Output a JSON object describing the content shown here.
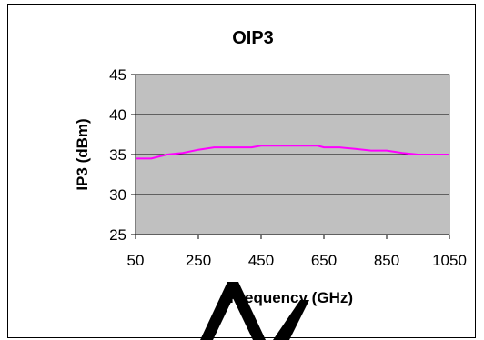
{
  "chart_data": {
    "type": "line",
    "title": "OIP3",
    "xlabel": "Frequency (GHz)",
    "ylabel": "IP3 (dBm)",
    "xlim": [
      50,
      1050
    ],
    "ylim": [
      25,
      45
    ],
    "x_ticks": [
      "50",
      "250",
      "450",
      "650",
      "850",
      "1050"
    ],
    "y_ticks": [
      "25",
      "30",
      "35",
      "40",
      "45"
    ],
    "grid": true,
    "legend": "none",
    "plot_background": "#c0c0c0",
    "series": [
      {
        "color": "#ff00ff",
        "x": [
          50,
          100,
          150,
          200,
          250,
          300,
          350,
          400,
          420,
          450,
          500,
          550,
          600,
          630,
          650,
          700,
          750,
          800,
          850,
          900,
          950,
          1000,
          1050
        ],
        "values": [
          34.5,
          34.5,
          35.0,
          35.2,
          35.6,
          35.9,
          35.9,
          35.9,
          35.9,
          36.1,
          36.1,
          36.1,
          36.1,
          36.1,
          35.9,
          35.9,
          35.7,
          35.5,
          35.5,
          35.2,
          35.0,
          35.0,
          35.0
        ]
      }
    ]
  }
}
